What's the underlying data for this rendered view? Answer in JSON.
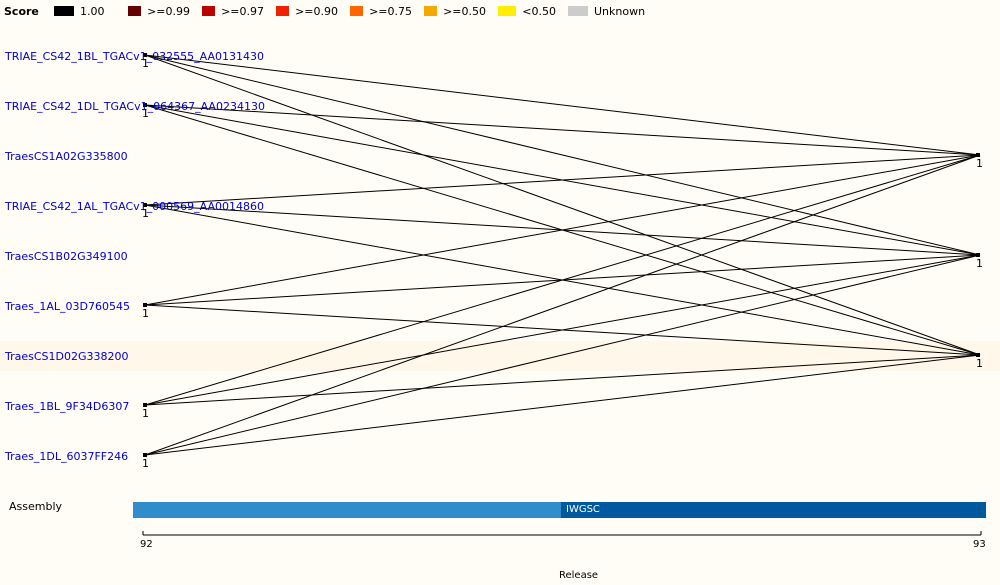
{
  "legend": {
    "title": "Score",
    "items": [
      {
        "label": "1.00",
        "color": "#000000"
      },
      {
        "label": ">=0.99",
        "color": "#660000"
      },
      {
        "label": ">=0.97",
        "color": "#bb0000"
      },
      {
        "label": ">=0.90",
        "color": "#ee2200"
      },
      {
        "label": ">=0.75",
        "color": "#ff6600"
      },
      {
        "label": ">=0.50",
        "color": "#f5a800"
      },
      {
        "label": "<0.50",
        "color": "#ffee00"
      },
      {
        "label": "Unknown",
        "color": "#cccccc"
      }
    ]
  },
  "genes": [
    "TRIAE_CS42_1BL_TGACv1_032555_AA0131430",
    "TRIAE_CS42_1DL_TGACv1_064367_AA0234130",
    "TraesCS1A02G335800",
    "TRIAE_CS42_1AL_TGACv1_000569_AA0014860",
    "TraesCS1B02G349100",
    "Traes_1AL_03D760545",
    "TraesCS1D02G338200",
    "Traes_1BL_9F34D6307",
    "Traes_1DL_6037FF246"
  ],
  "highlighted_gene": "TraesCS1D02G338200",
  "node_label": "1",
  "assembly": {
    "label": "Assembly",
    "name": "IWGSC"
  },
  "axis": {
    "title": "Release",
    "start": "92",
    "end": "93"
  }
}
